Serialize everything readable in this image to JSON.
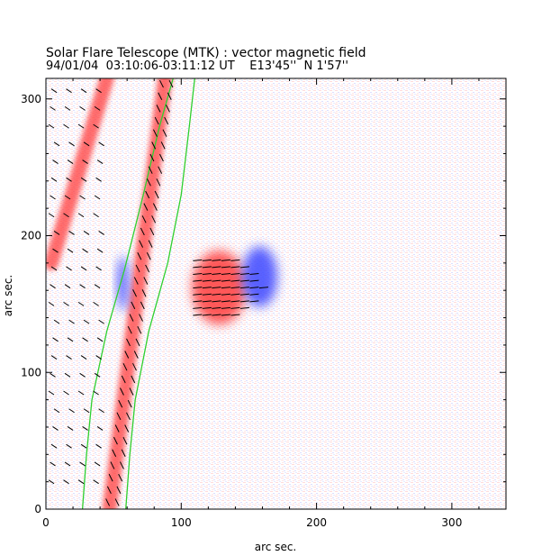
{
  "chart_data": {
    "type": "heatmap",
    "title": "Solar Flare Telescope (MTK) : vector magnetic field",
    "subtitle": "94/01/04  03:10:06-03:11:12 UT    E13'45''  N 1'57''",
    "xlabel": "arc sec.",
    "ylabel": "arc sec.",
    "xlim": [
      0,
      340
    ],
    "ylim": [
      0,
      315
    ],
    "xticks": [
      0,
      100,
      200,
      300
    ],
    "yticks": [
      0,
      100,
      200,
      300
    ],
    "colors": {
      "positive": "#ff3c3c",
      "negative": "#3c46ff",
      "contour": "#2fd02f",
      "vector": "#000000",
      "frame": "#000000"
    },
    "features": [
      {
        "name": "positive-spot",
        "polarity": "positive",
        "x": 128,
        "y": 162,
        "rx": 20,
        "ry": 27
      },
      {
        "name": "negative-spot",
        "polarity": "negative",
        "x": 158,
        "y": 170,
        "rx": 13,
        "ry": 22
      },
      {
        "name": "limb-band-outer",
        "polarity": "positive",
        "x0": 47,
        "y0": 0,
        "x1": 88,
        "y1": 315
      },
      {
        "name": "limb-band-inner",
        "polarity": "positive",
        "x0": 4,
        "y0": 180,
        "x1": 45,
        "y1": 315
      },
      {
        "name": "limb-blue-strip",
        "polarity": "negative",
        "x": 57,
        "y": 165,
        "rx": 4,
        "ry": 20
      }
    ],
    "contours": [
      {
        "name": "limb-contour-1",
        "points": [
          [
            27,
            0
          ],
          [
            30,
            40
          ],
          [
            34,
            80
          ],
          [
            45,
            130
          ],
          [
            58,
            175
          ],
          [
            72,
            230
          ],
          [
            84,
            280
          ],
          [
            94,
            315
          ]
        ]
      },
      {
        "name": "limb-contour-2",
        "points": [
          [
            59,
            0
          ],
          [
            62,
            40
          ],
          [
            66,
            80
          ],
          [
            76,
            130
          ],
          [
            90,
            180
          ],
          [
            100,
            230
          ],
          [
            106,
            280
          ],
          [
            110,
            315
          ]
        ]
      }
    ]
  }
}
